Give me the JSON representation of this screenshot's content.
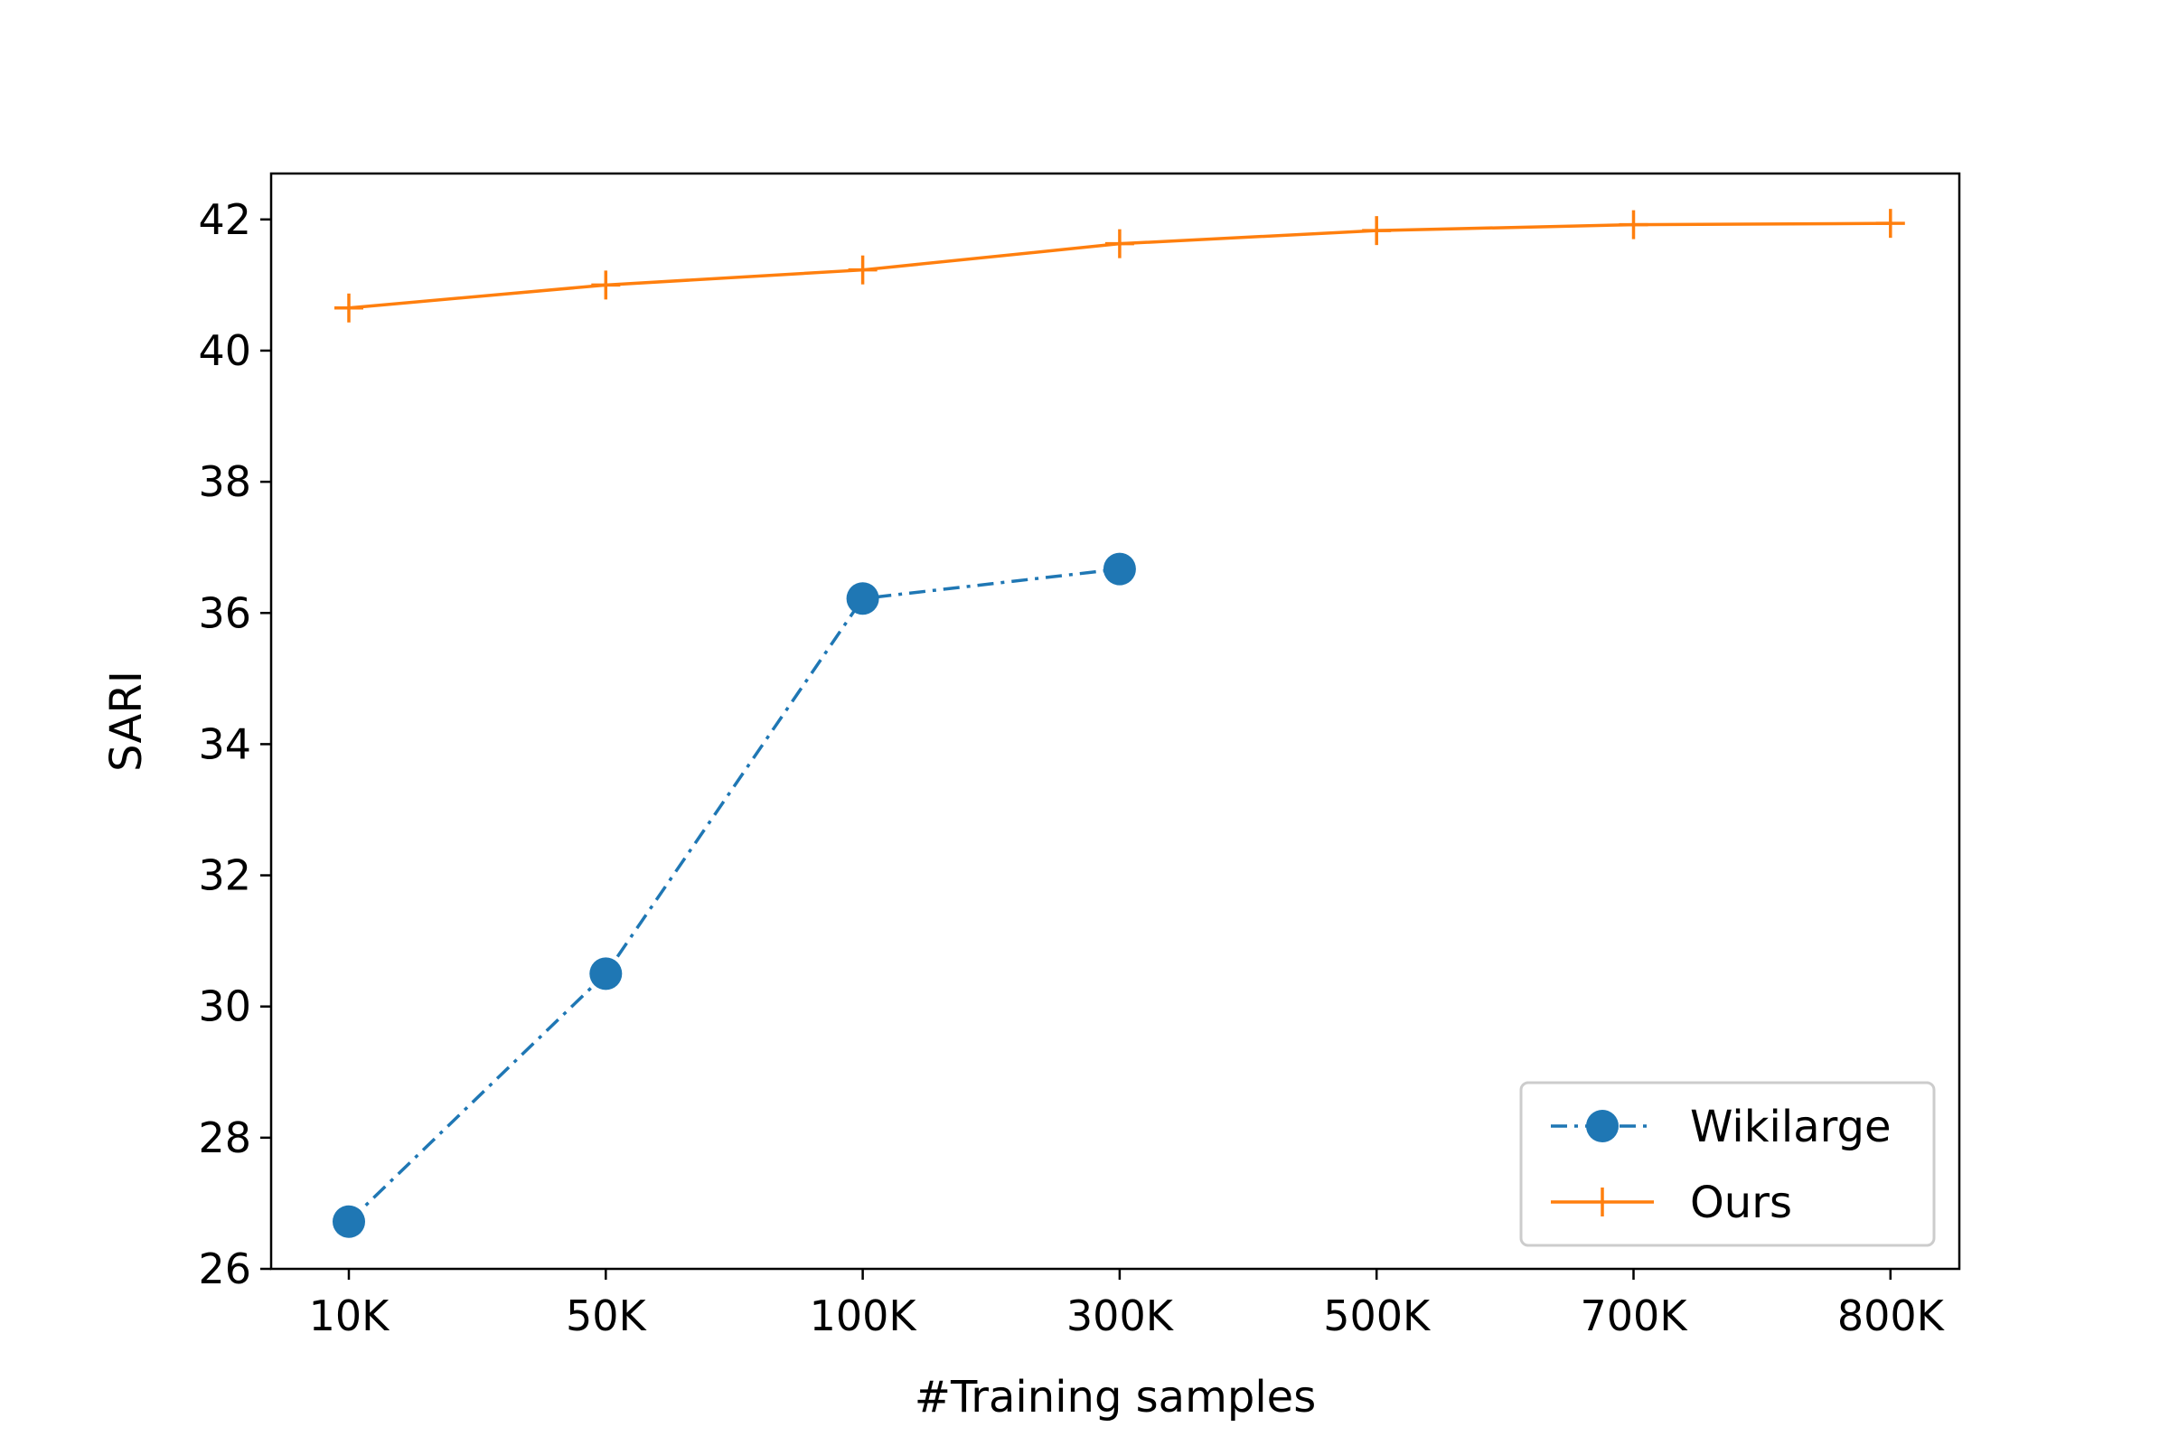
{
  "chart_data": {
    "type": "line",
    "categories": [
      "10K",
      "50K",
      "100K",
      "300K",
      "500K",
      "700K",
      "800K"
    ],
    "xlabel": "#Training samples",
    "ylabel": "SARI",
    "ylim": [
      26,
      42.7
    ],
    "yticks": [
      26,
      28,
      30,
      32,
      34,
      36,
      38,
      40,
      42
    ],
    "grid": false,
    "legend_position": "bottom-right",
    "series": [
      {
        "name": "Wikilarge",
        "values": [
          26.72,
          30.5,
          36.22,
          36.67,
          null,
          null,
          null
        ],
        "color": "#1f77b4",
        "line_style": "dash-dot",
        "marker": "circle"
      },
      {
        "name": "Ours",
        "values": [
          40.65,
          41.0,
          41.23,
          41.63,
          41.83,
          41.92,
          41.94
        ],
        "color": "#ff7f0e",
        "line_style": "solid",
        "marker": "plus"
      }
    ]
  }
}
